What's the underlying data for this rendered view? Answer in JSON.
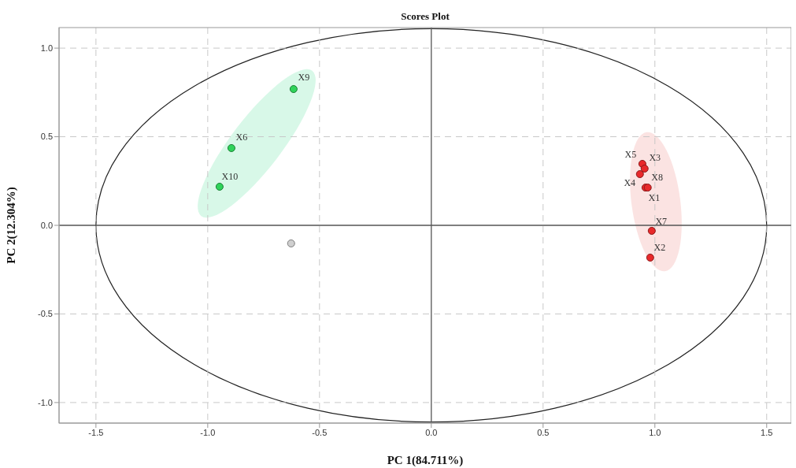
{
  "chart_data": {
    "type": "scatter",
    "title": "Scores Plot",
    "xlabel": "PC 1(84.711%)",
    "ylabel": "PC 2(12.304%)",
    "xlim": [
      -1.665,
      1.61
    ],
    "ylim": [
      -1.116,
      1.116
    ],
    "xticks": [
      -1.5,
      {
        "value": -1.0,
        "label": "-1.0"
      },
      -0.5,
      {
        "value": 0,
        "label": "0.0"
      },
      0.5,
      {
        "value": 1.0,
        "label": "1.0"
      },
      1.5
    ],
    "yticks": [
      {
        "value": -1.0,
        "label": "-1.0"
      },
      -0.5,
      {
        "value": 0,
        "label": "0.0"
      },
      0.5,
      {
        "value": 1.0,
        "label": "1.0"
      }
    ],
    "grid": true,
    "marker": "circle",
    "series": [
      {
        "color": "#2fd35a",
        "x": [
          -0.616,
          -0.894,
          -0.947
        ],
        "values": [
          0.769,
          0.436,
          0.218
        ]
      },
      {
        "color": "#e8292b",
        "x": [
          0.944,
          0.954,
          0.933,
          0.958,
          0.968,
          0.986,
          0.979
        ],
        "values": [
          0.347,
          0.32,
          0.289,
          0.213,
          0.213,
          -0.031,
          -0.182
        ]
      },
      {
        "color": "#cfcfcf",
        "x": [
          -0.627
        ],
        "values": [
          -0.102
        ]
      }
    ],
    "annotations": [
      {
        "text": "X9",
        "x": -0.616,
        "y": 0.769
      },
      {
        "text": "X6",
        "x": -0.894,
        "y": 0.436
      },
      {
        "text": "X10",
        "x": -0.947,
        "y": 0.218
      },
      {
        "text": "X5",
        "x": 0.944,
        "y": 0.347
      },
      {
        "text": "X3",
        "x": 0.954,
        "y": 0.32
      },
      {
        "text": "X8",
        "x": 0.968,
        "y": 0.213
      },
      {
        "text": "X4",
        "x": 0.933,
        "y": 0.289
      },
      {
        "text": "X1",
        "x": 0.958,
        "y": 0.213
      },
      {
        "text": "X7",
        "x": 0.986,
        "y": -0.031
      },
      {
        "text": "X2",
        "x": 0.979,
        "y": -0.182
      }
    ]
  }
}
